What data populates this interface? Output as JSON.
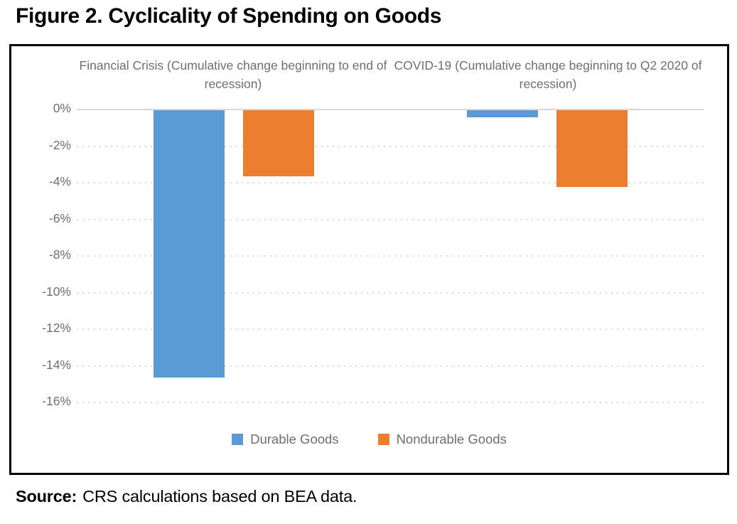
{
  "figure": {
    "title": "Figure 2. Cyclicality of Spending on Goods",
    "source_label": "Source:",
    "source_text": "CRS calculations based on BEA data."
  },
  "chart_data": {
    "type": "bar",
    "title": "Figure 2. Cyclicality of Spending on Goods",
    "categories": [
      "Financial Crisis (Cumulative change beginning to end of recession)",
      "COVID-19 (Cumulative change beginning to Q2 2020 of recession)"
    ],
    "series": [
      {
        "name": "Durable Goods",
        "color": "#5B9BD5",
        "values": [
          -14.6,
          -0.4
        ]
      },
      {
        "name": "Nondurable Goods",
        "color": "#ED7D31",
        "values": [
          -3.6,
          -4.2
        ]
      }
    ],
    "unit": "percent",
    "yticks": [
      0,
      -2,
      -4,
      -6,
      -8,
      -10,
      -12,
      -14,
      -16
    ],
    "ytick_suffix": "%",
    "ylim": [
      -16,
      0
    ],
    "grid": "horizontal; dotted gridlines, solid zero line",
    "gridline_color": "#d9d9d9",
    "text_color": "#6e6e6e",
    "legend_position": "bottom",
    "source": "Source: CRS calculations based on BEA data."
  }
}
